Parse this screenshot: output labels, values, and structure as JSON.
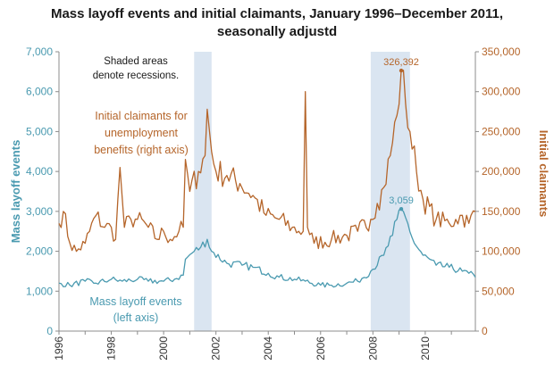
{
  "title_line1": "Mass layoff events and initial claimants, January 1996–December 2011,",
  "title_line2": "seasonally adjustd",
  "chart_data": {
    "type": "line",
    "x_range": [
      "1996-01",
      "2011-12"
    ],
    "x_tick_labels": [
      "1996",
      "1998",
      "2000",
      "2002",
      "2004",
      "2006",
      "2008",
      "2010"
    ],
    "left_axis": {
      "label": "Mass layoff events",
      "ylim": [
        0,
        7000
      ],
      "tick_labels": [
        "0",
        "1,000",
        "2,000",
        "3,000",
        "4,000",
        "5,000",
        "6,000",
        "7,000"
      ],
      "color": "#4a9ab0"
    },
    "right_axis": {
      "label": "Initial claimants",
      "ylim": [
        0,
        350000
      ],
      "tick_labels": [
        "0",
        "50,000",
        "100,000",
        "150,000",
        "200,000",
        "250,000",
        "300,000",
        "350,000"
      ],
      "color": "#b5652a"
    },
    "recessions": [
      {
        "start": "2001-03",
        "end": "2001-11"
      },
      {
        "start": "2007-12",
        "end": "2009-06"
      }
    ],
    "recession_color": "#dae5f1",
    "recession_note": [
      "Shaded areas",
      "denote recessions."
    ],
    "series": [
      {
        "name_lines": [
          "Initial claimants for",
          "unemployment",
          "benefits (right axis)"
        ],
        "axis": "right",
        "color": "#b5652a",
        "peak_label": "326,392",
        "peak_date": "2009-02",
        "peak_value": 326392,
        "keypoints": [
          [
            "1996-01",
            135000
          ],
          [
            "1996-03",
            150000
          ],
          [
            "1996-06",
            110000
          ],
          [
            "1996-09",
            100000
          ],
          [
            "1997-01",
            110000
          ],
          [
            "1997-06",
            145000
          ],
          [
            "1997-10",
            130000
          ],
          [
            "1998-01",
            130000
          ],
          [
            "1998-03",
            115000
          ],
          [
            "1998-05",
            205000
          ],
          [
            "1998-07",
            130000
          ],
          [
            "1998-10",
            140000
          ],
          [
            "1999-01",
            140000
          ],
          [
            "1999-06",
            130000
          ],
          [
            "1999-10",
            115000
          ],
          [
            "2000-01",
            125000
          ],
          [
            "2000-04",
            115000
          ],
          [
            "2000-08",
            125000
          ],
          [
            "2000-10",
            130000
          ],
          [
            "2000-11",
            215000
          ],
          [
            "2001-01",
            175000
          ],
          [
            "2001-05",
            200000
          ],
          [
            "2001-08",
            220000
          ],
          [
            "2001-09",
            278000
          ],
          [
            "2001-11",
            225000
          ],
          [
            "2002-01",
            200000
          ],
          [
            "2002-06",
            195000
          ],
          [
            "2002-12",
            185000
          ],
          [
            "2003-06",
            170000
          ],
          [
            "2003-12",
            145000
          ],
          [
            "2004-06",
            140000
          ],
          [
            "2004-12",
            130000
          ],
          [
            "2005-03",
            125000
          ],
          [
            "2005-05",
            125000
          ],
          [
            "2005-06",
            300000
          ],
          [
            "2005-07",
            130000
          ],
          [
            "2005-10",
            110000
          ],
          [
            "2006-06",
            115000
          ],
          [
            "2007-01",
            120000
          ],
          [
            "2007-06",
            125000
          ],
          [
            "2007-12",
            140000
          ],
          [
            "2008-03",
            160000
          ],
          [
            "2008-06",
            180000
          ],
          [
            "2008-09",
            220000
          ],
          [
            "2008-12",
            270000
          ],
          [
            "2009-02",
            326392
          ],
          [
            "2009-04",
            285000
          ],
          [
            "2009-06",
            250000
          ],
          [
            "2009-09",
            200000
          ],
          [
            "2009-12",
            165000
          ],
          [
            "2010-06",
            140000
          ],
          [
            "2010-12",
            135000
          ],
          [
            "2011-03",
            140000
          ],
          [
            "2011-06",
            145000
          ],
          [
            "2011-09",
            135000
          ],
          [
            "2011-12",
            150000
          ]
        ]
      },
      {
        "name_lines": [
          "Mass layoff events",
          "(left axis)"
        ],
        "axis": "left",
        "color": "#4a9ab0",
        "peak_label": "3,059",
        "peak_date": "2009-02",
        "peak_value": 3059,
        "keypoints": [
          [
            "1996-01",
            1200
          ],
          [
            "1996-06",
            1150
          ],
          [
            "1997-01",
            1250
          ],
          [
            "1997-06",
            1200
          ],
          [
            "1998-01",
            1300
          ],
          [
            "1998-06",
            1250
          ],
          [
            "1999-01",
            1300
          ],
          [
            "1999-06",
            1250
          ],
          [
            "2000-01",
            1250
          ],
          [
            "2000-06",
            1300
          ],
          [
            "2000-10",
            1400
          ],
          [
            "2000-11",
            1800
          ],
          [
            "2001-03",
            2000
          ],
          [
            "2001-06",
            2100
          ],
          [
            "2001-09",
            2300
          ],
          [
            "2001-11",
            2000
          ],
          [
            "2002-06",
            1700
          ],
          [
            "2003-01",
            1650
          ],
          [
            "2003-06",
            1600
          ],
          [
            "2004-01",
            1450
          ],
          [
            "2004-06",
            1350
          ],
          [
            "2005-01",
            1300
          ],
          [
            "2005-06",
            1250
          ],
          [
            "2006-01",
            1150
          ],
          [
            "2006-06",
            1150
          ],
          [
            "2007-01",
            1200
          ],
          [
            "2007-06",
            1250
          ],
          [
            "2007-12",
            1500
          ],
          [
            "2008-06",
            1900
          ],
          [
            "2008-10",
            2400
          ],
          [
            "2008-12",
            2800
          ],
          [
            "2009-02",
            3059
          ],
          [
            "2009-05",
            2700
          ],
          [
            "2009-08",
            2200
          ],
          [
            "2009-12",
            1900
          ],
          [
            "2010-06",
            1650
          ],
          [
            "2010-12",
            1600
          ],
          [
            "2011-06",
            1500
          ],
          [
            "2011-09",
            1450
          ],
          [
            "2011-12",
            1350
          ]
        ]
      }
    ]
  }
}
